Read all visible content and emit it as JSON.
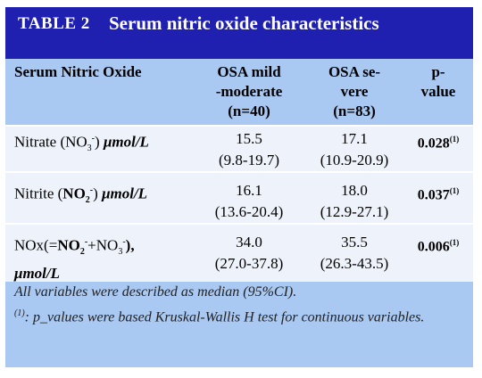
{
  "header": {
    "label": "TABLE 2",
    "title": "Serum nitric oxide characteristics"
  },
  "table": {
    "columns": [
      [
        "Serum Nitric Oxide"
      ],
      [
        "OSA mild",
        "-moderate",
        "(n=40)"
      ],
      [
        "OSA se-",
        "vere",
        "(n=83)"
      ],
      [
        "p-",
        "value"
      ]
    ],
    "rows": [
      {
        "label": [
          "Nitrate (NO",
          "3",
          "-",
          ") ",
          "μmol/L"
        ],
        "mild": [
          "15.5",
          "(9.8-19.7)"
        ],
        "severe": [
          "17.1",
          "(10.9-20.9)"
        ],
        "p": [
          "0.028",
          "(1)"
        ]
      },
      {
        "label": [
          "Nitrite (",
          "NO",
          "2",
          "-",
          ") ",
          "μmol/L"
        ],
        "mild": [
          "16.1",
          "(13.6-20.4)"
        ],
        "severe": [
          "18.0",
          "(12.9-27.1)"
        ],
        "p": [
          "0.037",
          "(1)"
        ]
      },
      {
        "label": [
          "NOx(=",
          "NO",
          "2",
          "-",
          "+NO",
          "3",
          "-",
          "),",
          "μmol/L"
        ],
        "mild": [
          "34.0",
          "(27.0-37.8)"
        ],
        "severe": [
          "35.5",
          "(26.3-43.5)"
        ],
        "p": [
          "0.006",
          "(1)"
        ]
      }
    ]
  },
  "footer": {
    "notes": [
      "All variables were described as median (95%CI).",
      "(1)",
      ": p_values were based Kruskal-Wallis H test for continuous variables."
    ]
  }
}
